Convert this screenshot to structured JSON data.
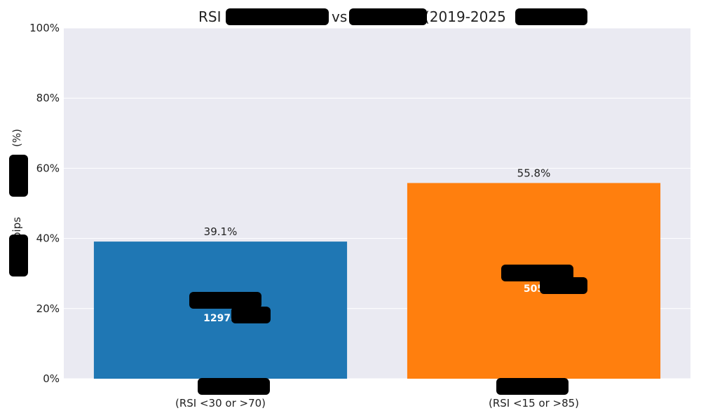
{
  "chart_data": {
    "type": "bar",
    "title": "RSI",
    "title_visible_parts": [
      "RSI",
      "vs",
      "(2019-2025"
    ],
    "ylabel_visible": "10pips",
    "ylabel_unit": "(%)",
    "ylim": [
      0,
      100
    ],
    "yticks": [
      "0%",
      "20%",
      "40%",
      "60%",
      "80%",
      "100%"
    ],
    "grid": true,
    "categories": [
      "(RSI <30 or >70)",
      "(RSI <15 or >85)"
    ],
    "values": [
      39.1,
      55.8
    ],
    "value_labels": [
      "39.1%",
      "55.8%"
    ],
    "count_labels": [
      "12974",
      "505"
    ],
    "colors": [
      "#1f77b4",
      "#ff7f0e"
    ],
    "background": "#eaeaf2"
  }
}
